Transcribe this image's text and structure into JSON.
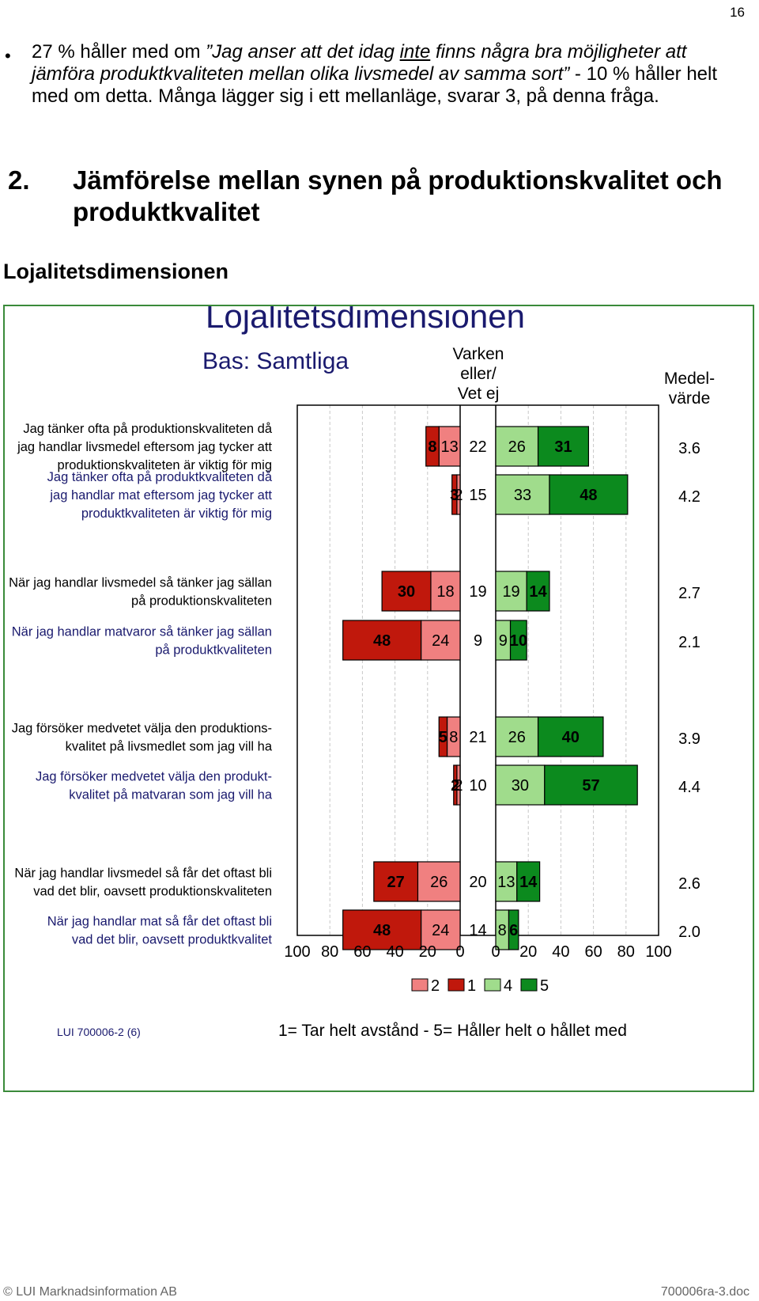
{
  "page": {
    "number": "16"
  },
  "bullet_paragraph": {
    "bullet": "•",
    "part1": "27 % håller med om ",
    "italic_part1": "”Jag anser att det idag ",
    "italic_underlined": "inte",
    "italic_part2": " finns några bra möjligheter att jämföra produktkvaliteten mellan olika livsmedel av samma sort”",
    "part2": " - 10 % håller helt med om detta. Många lägger sig i ett mellanläge, svarar 3, på denna fråga."
  },
  "section": {
    "number": "2.",
    "title_line1": "Jämförelse mellan synen på  produktionskvalitet och",
    "title_line2": "produktkvalitet"
  },
  "subheading": "Lojalitetsdimensionen",
  "chart_data": {
    "type": "bar",
    "title": "Lojalitetsdimensionen",
    "subtitle": "Bas: Samtliga",
    "neutral_header": [
      "Varken",
      "eller/",
      "Vet ej"
    ],
    "mean_header": [
      "Medel-",
      "värde"
    ],
    "x_ticks_left": [
      "100",
      "80",
      "60",
      "40",
      "20",
      "0"
    ],
    "x_ticks_right": [
      "0",
      "20",
      "40",
      "60",
      "80",
      "100"
    ],
    "xlim": [
      -100,
      100
    ],
    "legend": [
      {
        "label": "2",
        "color": "#f08080"
      },
      {
        "label": "1",
        "color": "#c0180c"
      },
      {
        "label": "4",
        "color": "#a0dc8c"
      },
      {
        "label": "5",
        "color": "#0c8a1e"
      }
    ],
    "scale_note": "1= Tar helt avstånd - 5= Håller helt o hållet med",
    "source": "LUI 700006-2 (6)",
    "colors": {
      "r1": "#c0180c",
      "r2": "#f08080",
      "r4": "#a0dc8c",
      "r5": "#0c8a1e",
      "q_production": "#000000",
      "q_product": "#1a1a6e"
    },
    "rows": [
      {
        "group": 1,
        "label": [
          "Jag tänker ofta på produktionskvaliteten då",
          "jag handlar livsmedel eftersom jag tycker att",
          "produktionskvaliteten är viktig för mig"
        ],
        "kind": "production",
        "r1": 8,
        "r2": 13,
        "neutral": 22,
        "r4": 26,
        "r5": 31,
        "mean": "3.6"
      },
      {
        "group": 1,
        "label": [
          "Jag tänker ofta på produktkvaliteten då",
          "jag handlar mat eftersom jag tycker att",
          "produktkvaliteten är viktig för mig"
        ],
        "kind": "product",
        "r1": 3,
        "r2": 2,
        "neutral": 15,
        "r4": 33,
        "r5": 48,
        "mean": "4.2"
      },
      {
        "group": 2,
        "label": [
          "När jag handlar livsmedel så tänker jag sällan",
          "på produktionskvaliteten"
        ],
        "kind": "production",
        "r1": 30,
        "r2": 18,
        "neutral": 19,
        "r4": 19,
        "r5": 14,
        "mean": "2.7"
      },
      {
        "group": 2,
        "label": [
          "När jag handlar matvaror så tänker jag sällan",
          "på produktkvaliteten"
        ],
        "kind": "product",
        "r1": 48,
        "r2": 24,
        "neutral": 9,
        "r4": 9,
        "r5": 10,
        "mean": "2.1"
      },
      {
        "group": 3,
        "label": [
          "Jag försöker medvetet välja den produktions-",
          "kvalitet på livsmedlet som jag vill ha"
        ],
        "kind": "production",
        "r1": 5,
        "r2": 8,
        "neutral": 21,
        "r4": 26,
        "r5": 40,
        "mean": "3.9"
      },
      {
        "group": 3,
        "label": [
          "Jag försöker medvetet välja den produkt-",
          "kvalitet på matvaran som jag vill ha"
        ],
        "kind": "product",
        "r1": 2,
        "r2": 2,
        "neutral": 10,
        "r4": 30,
        "r5": 57,
        "mean": "4.4"
      },
      {
        "group": 4,
        "label": [
          "När jag handlar livsmedel så får det oftast bli",
          "vad det blir, oavsett produktionskvaliteten"
        ],
        "kind": "production",
        "r1": 27,
        "r2": 26,
        "neutral": 20,
        "r4": 13,
        "r5": 14,
        "mean": "2.6"
      },
      {
        "group": 4,
        "label": [
          "När jag handlar mat så får det oftast bli",
          "vad det blir, oavsett produktkvalitet"
        ],
        "kind": "product",
        "r1": 48,
        "r2": 24,
        "neutral": 14,
        "r4": 8,
        "r5": 6,
        "mean": "2.0"
      }
    ]
  },
  "footer": {
    "left": "© LUI Marknadsinformation AB",
    "right": "700006ra-3.doc"
  }
}
